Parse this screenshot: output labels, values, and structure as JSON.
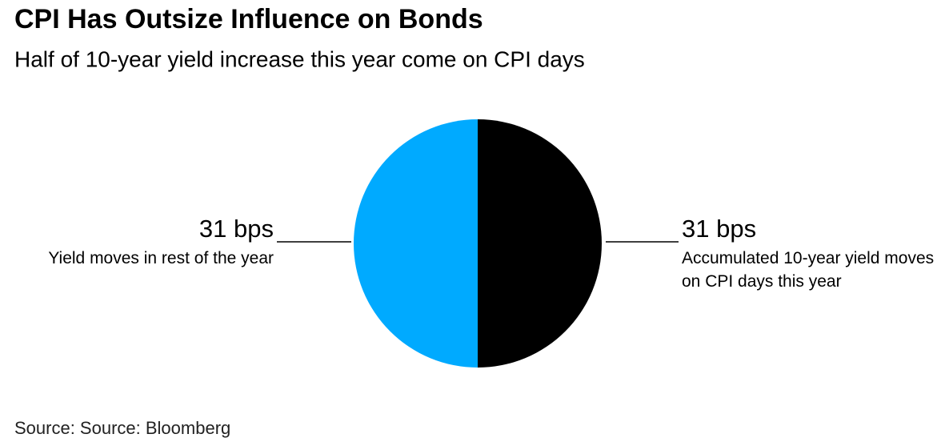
{
  "chart_data": {
    "type": "pie",
    "title": "CPI Has Outsize Influence on Bonds",
    "subtitle": "Half of 10-year yield increase this year come on CPI days",
    "source": "Source: Source: Bloomberg",
    "categories": [
      "Accumulated 10-year yield moves on CPI days this year",
      "Yield moves in rest of the year"
    ],
    "values": [
      31,
      31
    ],
    "value_labels": [
      "31 bps",
      "31 bps"
    ],
    "colors": [
      "#000000",
      "#00aaff"
    ]
  }
}
